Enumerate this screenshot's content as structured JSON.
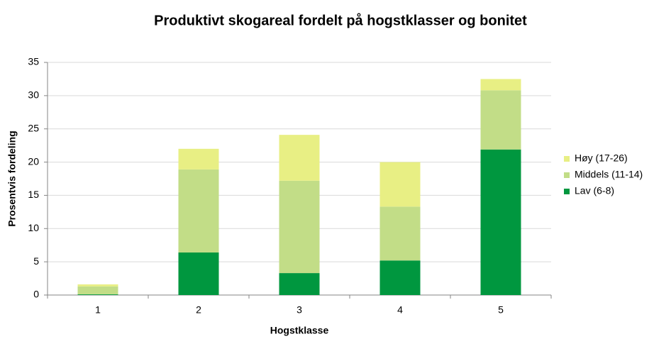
{
  "chart_data": {
    "type": "stacked_bar",
    "title": "Produktivt skogareal fordelt på hogstklasser og bonitet",
    "x_label": "Hogstklasse",
    "y_label": "Prosentvis fordeling",
    "categories": [
      "1",
      "2",
      "3",
      "4",
      "5"
    ],
    "series": [
      {
        "name": "Lav (6-8)",
        "color": "#00973f",
        "values": [
          0.1,
          6.4,
          3.3,
          5.2,
          21.9
        ]
      },
      {
        "name": "Middels (11-14)",
        "color": "#c2dd87",
        "values": [
          1.2,
          12.5,
          13.9,
          8.1,
          8.9
        ]
      },
      {
        "name": "Høy (17-26)",
        "color": "#e8ef84",
        "values": [
          0.3,
          3.1,
          6.9,
          6.7,
          1.7
        ]
      }
    ],
    "ylim": [
      0,
      35
    ],
    "yticks": [
      0,
      5,
      10,
      15,
      20,
      25,
      30,
      35
    ],
    "grid": true,
    "legend": "right"
  }
}
